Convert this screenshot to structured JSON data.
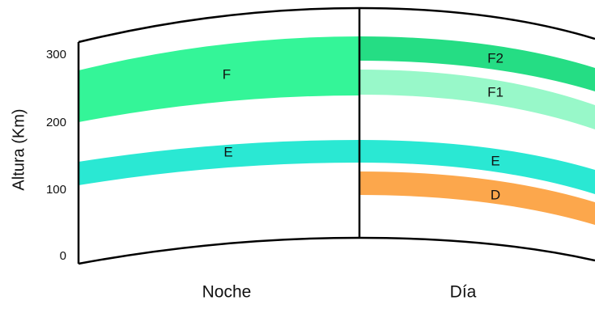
{
  "axis": {
    "label": "Altura (Km)",
    "ticks": [
      "300",
      "200",
      "100",
      "0"
    ]
  },
  "sides": {
    "night": "Noche",
    "day": "Día"
  },
  "layers": {
    "night_f": "F",
    "night_e": "E",
    "day_f2": "F2",
    "day_f1": "F1",
    "day_e": "E",
    "day_d": "D"
  },
  "colors": {
    "f_night": "#34f598",
    "f2": "#25dd84",
    "f1": "#98f8c9",
    "e": "#2ae8d3",
    "d": "#fca74c",
    "outline": "#000000"
  }
}
